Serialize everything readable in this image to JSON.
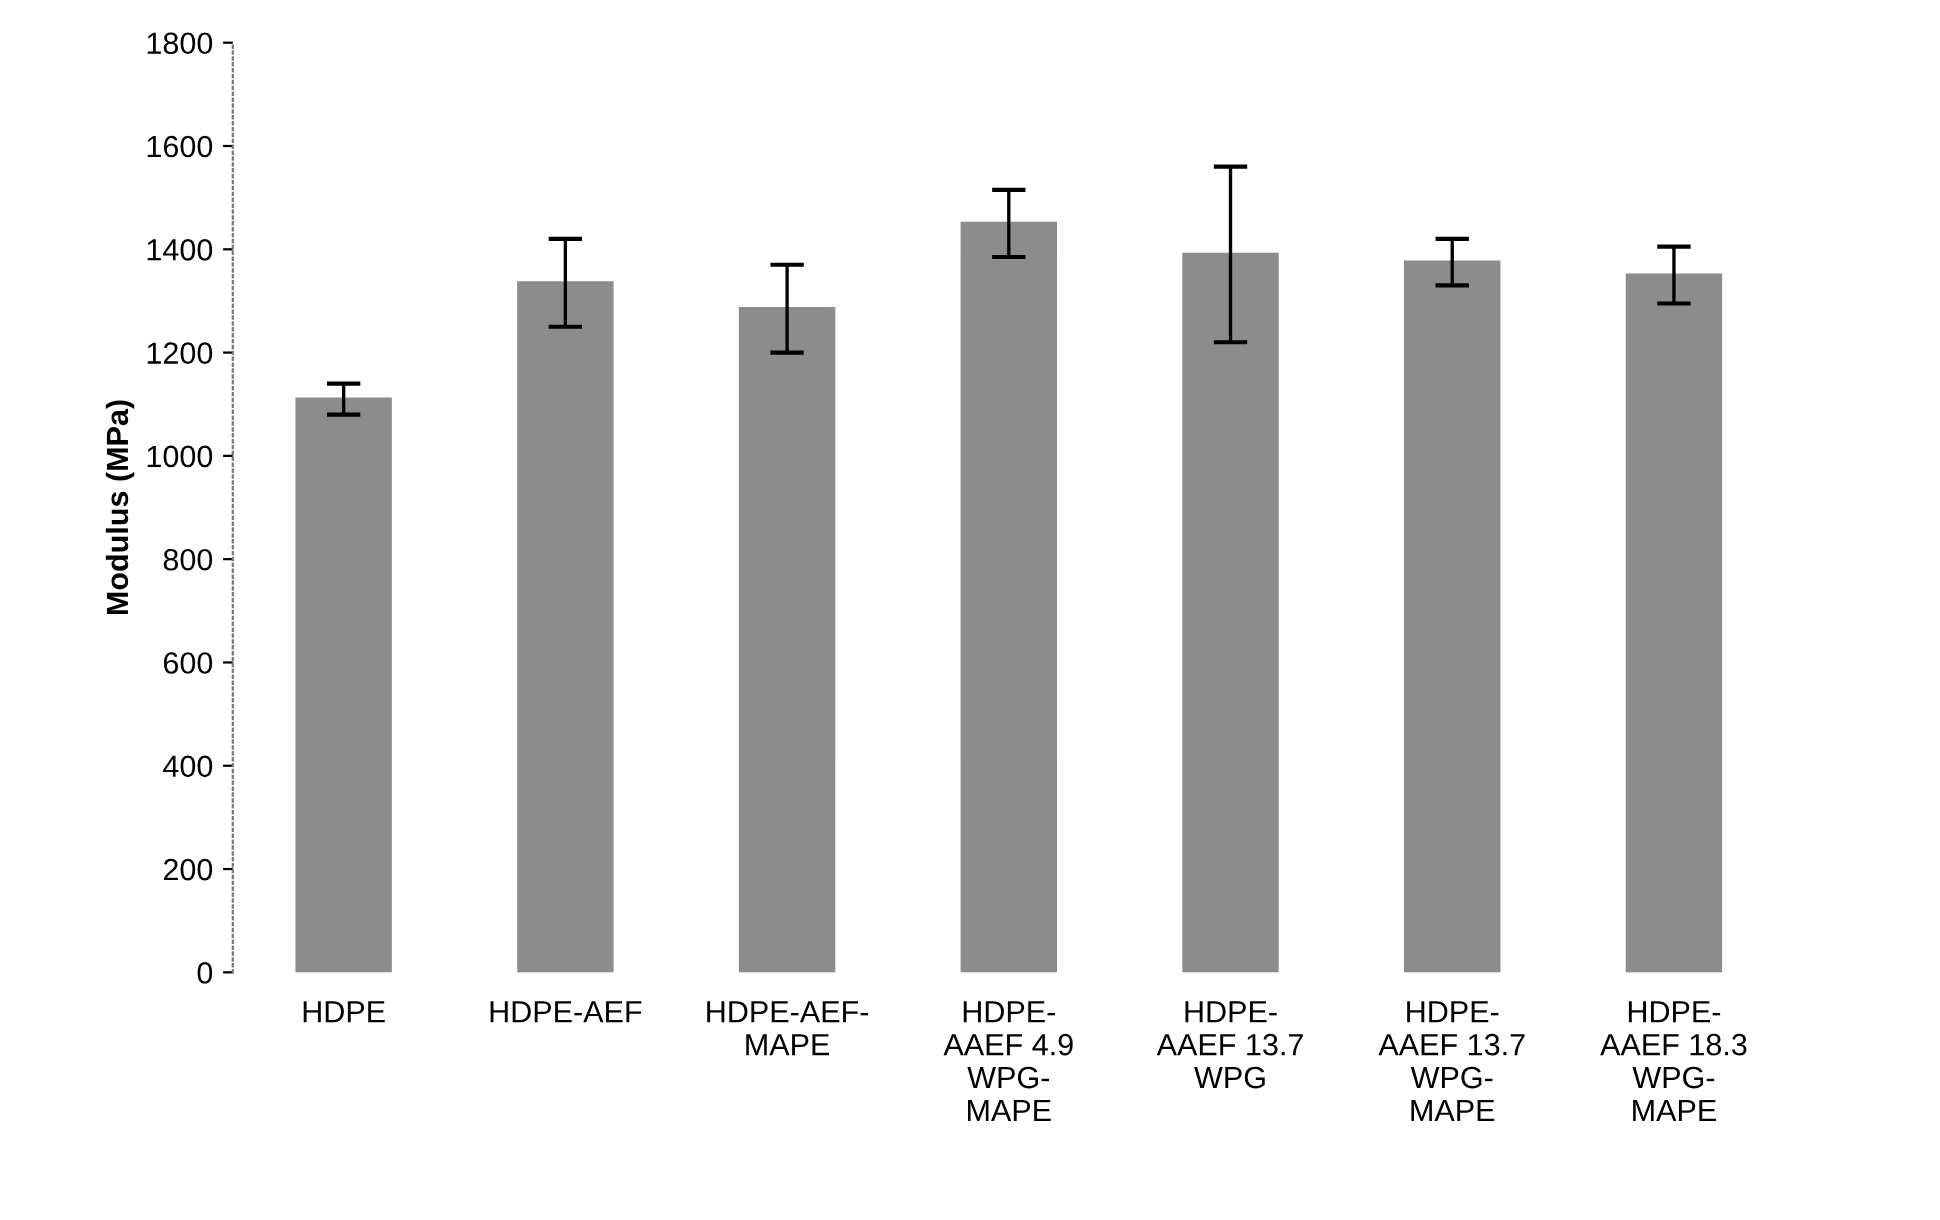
{
  "chart_data": {
    "type": "bar",
    "ylabel": "Modulus (MPa)",
    "categories": [
      "HDPE",
      "HDPE-AEF",
      "HDPE-AEF-\nMAPE",
      "HDPE-\nAAEF 4.9\nWPG-\nMAPE",
      "HDPE-\nAAEF 13.7\nWPG",
      "HDPE-\nAAEF 13.7\nWPG-\nMAPE",
      "HDPE-\nAAEF 18.3\nWPG-\nMAPE"
    ],
    "values": [
      1110,
      1335,
      1285,
      1450,
      1390,
      1375,
      1350
    ],
    "errors": [
      30,
      85,
      85,
      65,
      170,
      45,
      55
    ],
    "color": "#8c8c8c",
    "ylim": [
      0,
      1800
    ],
    "yticks": [
      0,
      200,
      400,
      600,
      800,
      1000,
      1200,
      1400,
      1600,
      1800
    ],
    "grid": false,
    "legend": false
  }
}
